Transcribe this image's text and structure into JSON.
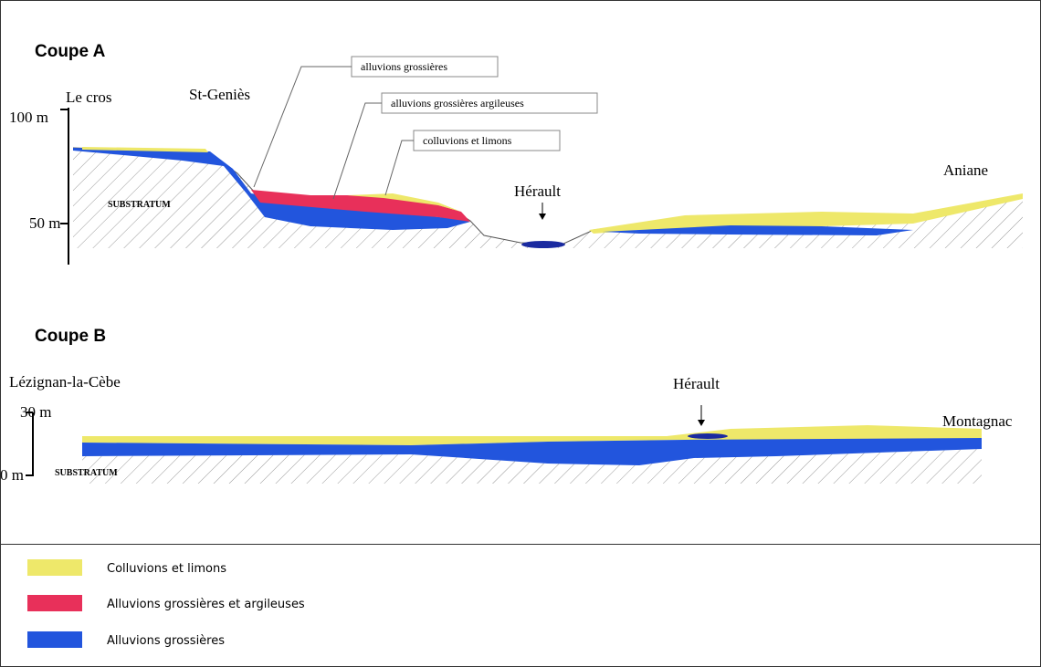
{
  "sections": [
    {
      "title": "Coupe A",
      "axis_labels": [
        "100 m",
        "50 m"
      ],
      "places": [
        "Le cros",
        "St-Geniès",
        "Hérault",
        "Aniane"
      ],
      "callouts": [
        "alluvions grossières",
        "alluvions grossières argileuses",
        "colluvions et limons"
      ],
      "substratum": "SUBSTRATUM"
    },
    {
      "title": "Coupe B",
      "axis_labels": [
        "30 m",
        "0 m"
      ],
      "places": [
        "Lézignan-la-Cèbe",
        "Hérault",
        "Montagnac"
      ],
      "substratum": "SUBSTRATUM"
    }
  ],
  "legend": [
    {
      "label": "Colluvions et limons"
    },
    {
      "label": "Alluvions grossières et argileuses"
    },
    {
      "label": "Alluvions grossières"
    }
  ]
}
